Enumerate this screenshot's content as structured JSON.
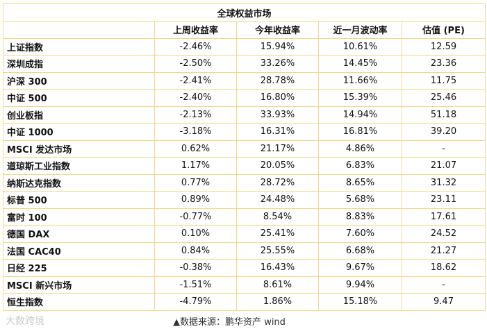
{
  "table": {
    "title": "全球权益市场",
    "headers": [
      "上周收益率",
      "今年收益率",
      "近一月波动率",
      "估值 (PE)"
    ],
    "rows": [
      [
        "上证指数",
        "-2.46%",
        "15.94%",
        "10.61%",
        "12.59"
      ],
      [
        "深圳成指",
        "-2.50%",
        "33.26%",
        "14.45%",
        "23.36"
      ],
      [
        "沪深 300",
        "-2.41%",
        "28.78%",
        "11.66%",
        "11.75"
      ],
      [
        "中证 500",
        "-2.40%",
        "16.80%",
        "15.39%",
        "25.46"
      ],
      [
        "创业板指",
        "-2.13%",
        "33.93%",
        "14.94%",
        "51.18"
      ],
      [
        "中证 1000",
        "-3.18%",
        "16.31%",
        "16.81%",
        "39.20"
      ],
      [
        "MSCI 发达市场",
        "0.62%",
        "21.17%",
        "4.86%",
        "-"
      ],
      [
        "道琼斯工业指数",
        "1.17%",
        "20.05%",
        "6.83%",
        "21.07"
      ],
      [
        "纳斯达克指数",
        "0.77%",
        "28.72%",
        "8.65%",
        "31.32"
      ],
      [
        "标普 500",
        "0.89%",
        "24.48%",
        "5.68%",
        "23.11"
      ],
      [
        "富时 100",
        "-0.77%",
        "8.54%",
        "8.83%",
        "17.61"
      ],
      [
        "德国 DAX",
        "0.10%",
        "25.41%",
        "7.60%",
        "24.52"
      ],
      [
        "法国 CAC40",
        "0.84%",
        "25.55%",
        "6.68%",
        "21.27"
      ],
      [
        "日经 225",
        "-0.38%",
        "16.43%",
        "9.67%",
        "18.62"
      ],
      [
        "MSCI 新兴市场",
        "-1.51%",
        "8.61%",
        "9.94%",
        "-"
      ],
      [
        "恒生指数",
        "-4.79%",
        "1.86%",
        "15.18%",
        "9.47"
      ]
    ]
  },
  "footer": {
    "source": "▲数据来源：鹏华资产 wind",
    "watermark": "大数跨境"
  }
}
